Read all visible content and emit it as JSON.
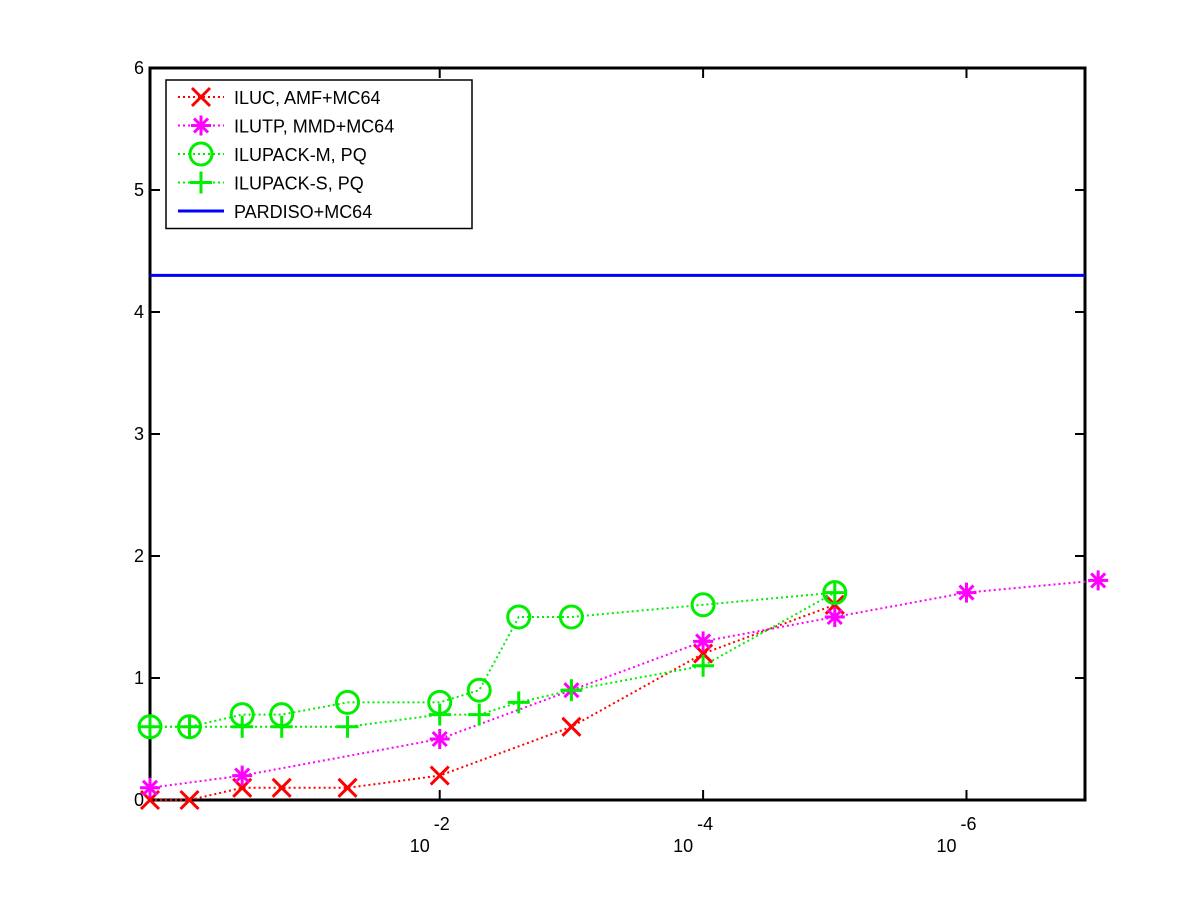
{
  "chart_data": {
    "type": "line",
    "x_axis": {
      "scale": "log-decreasing",
      "range_exponent": [
        0.2,
        -6.9
      ],
      "ticks": [
        {
          "base": "10",
          "exponent": "-2",
          "value": -2
        },
        {
          "base": "10",
          "exponent": "-4",
          "value": -4
        },
        {
          "base": "10",
          "exponent": "-6",
          "value": -6
        }
      ]
    },
    "y_axis": {
      "range": [
        0,
        6
      ],
      "ticks": [
        "0",
        "1",
        "2",
        "3",
        "4",
        "5",
        "6"
      ]
    },
    "grid": false,
    "legend_position": "top-left",
    "series": [
      {
        "name": "ILUC, AMF+MC64",
        "color": "#ff0000",
        "line_style": "dotted",
        "marker": "x",
        "x_exponent": [
          0.2,
          -0.1,
          -0.5,
          -0.8,
          -1.3,
          -2.0,
          -3.0,
          -4.0,
          -5.0
        ],
        "y": [
          0.0,
          0.0,
          0.1,
          0.1,
          0.1,
          0.2,
          0.6,
          1.2,
          1.6
        ]
      },
      {
        "name": "ILUTP, MMD+MC64",
        "color": "#ff00ff",
        "line_style": "dotted",
        "marker": "asterisk",
        "x_exponent": [
          0.2,
          -0.5,
          -2.0,
          -3.0,
          -4.0,
          -5.0,
          -6.0,
          -7.0
        ],
        "y": [
          0.1,
          0.2,
          0.5,
          0.9,
          1.3,
          1.5,
          1.7,
          1.8
        ]
      },
      {
        "name": "ILUPACK-M, PQ",
        "color": "#00ee00",
        "line_style": "dotted",
        "marker": "circle",
        "x_exponent": [
          0.2,
          -0.1,
          -0.5,
          -0.8,
          -1.3,
          -2.0,
          -2.3,
          -2.6,
          -3.0,
          -4.0,
          -5.0
        ],
        "y": [
          0.6,
          0.6,
          0.7,
          0.7,
          0.8,
          0.8,
          0.9,
          1.5,
          1.5,
          1.6,
          1.7
        ]
      },
      {
        "name": "ILUPACK-S, PQ",
        "color": "#00ee00",
        "line_style": "dotted",
        "marker": "plus",
        "x_exponent": [
          0.2,
          -0.1,
          -0.5,
          -0.8,
          -1.3,
          -2.0,
          -2.3,
          -2.6,
          -3.0,
          -4.0,
          -5.0
        ],
        "y": [
          0.6,
          0.6,
          0.6,
          0.6,
          0.6,
          0.7,
          0.7,
          0.8,
          0.9,
          1.1,
          1.7
        ]
      },
      {
        "name": "PARDISO+MC64",
        "color": "#0000ff",
        "line_style": "solid",
        "marker": "none",
        "x_exponent": [
          0.2,
          -6.9
        ],
        "y": [
          4.3,
          4.3
        ]
      }
    ]
  }
}
